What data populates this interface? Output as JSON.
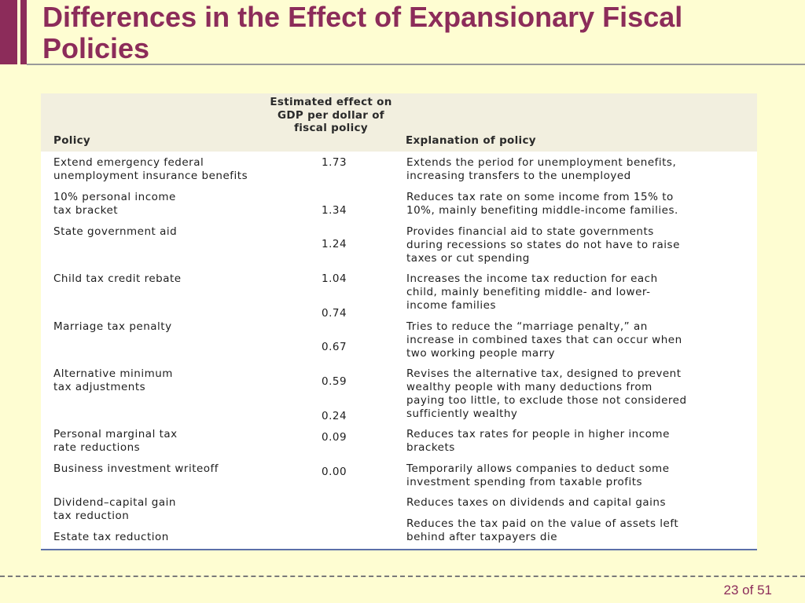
{
  "slide": {
    "title": "Differences in the Effect of Expansionary Fiscal Policies",
    "page_number": "23 of 51"
  },
  "table": {
    "headers": {
      "policy": "Policy",
      "effect": "Estimated effect on GDP per dollar of fiscal policy",
      "explanation": "Explanation of policy"
    },
    "policies": [
      "Extend emergency federal\nunemployment insurance benefits",
      "10% personal income\ntax bracket",
      "State government aid",
      "Child tax credit rebate",
      "Marriage tax penalty",
      "Alternative minimum\ntax adjustments",
      "Personal marginal tax\nrate reductions",
      "Business investment writeoff",
      "Dividend–capital gain\ntax reduction",
      "Estate tax reduction"
    ],
    "effects": [
      "1.73",
      "1.34",
      "1.24",
      "1.04",
      "0.74",
      "0.67",
      "0.59",
      "0.24",
      "0.09",
      "0.00"
    ],
    "explanations": [
      "Extends the period for unemployment benefits,\nincreasing transfers to the unemployed",
      "Reduces tax rate on some income from 15% to\n10%, mainly benefiting middle-income families.",
      "Provides financial aid to state governments\nduring recessions so states do not have to raise\ntaxes or cut spending",
      "Increases the income tax reduction for each\nchild, mainly benefiting middle- and lower-\nincome families",
      "Tries to reduce the “marriage penalty,” an\nincrease in combined taxes that can occur when\ntwo working people marry",
      "Revises the alternative tax, designed to prevent\nwealthy people with many deductions from\npaying too little, to exclude those not considered\nsufficiently wealthy",
      "Reduces tax rates for people in higher income\nbrackets",
      "Temporarily allows companies to deduct some\ninvestment spending from taxable profits",
      "Reduces taxes on dividends and capital gains",
      "Reduces the tax paid on the value of assets left\nbehind after taxpayers die"
    ]
  }
}
